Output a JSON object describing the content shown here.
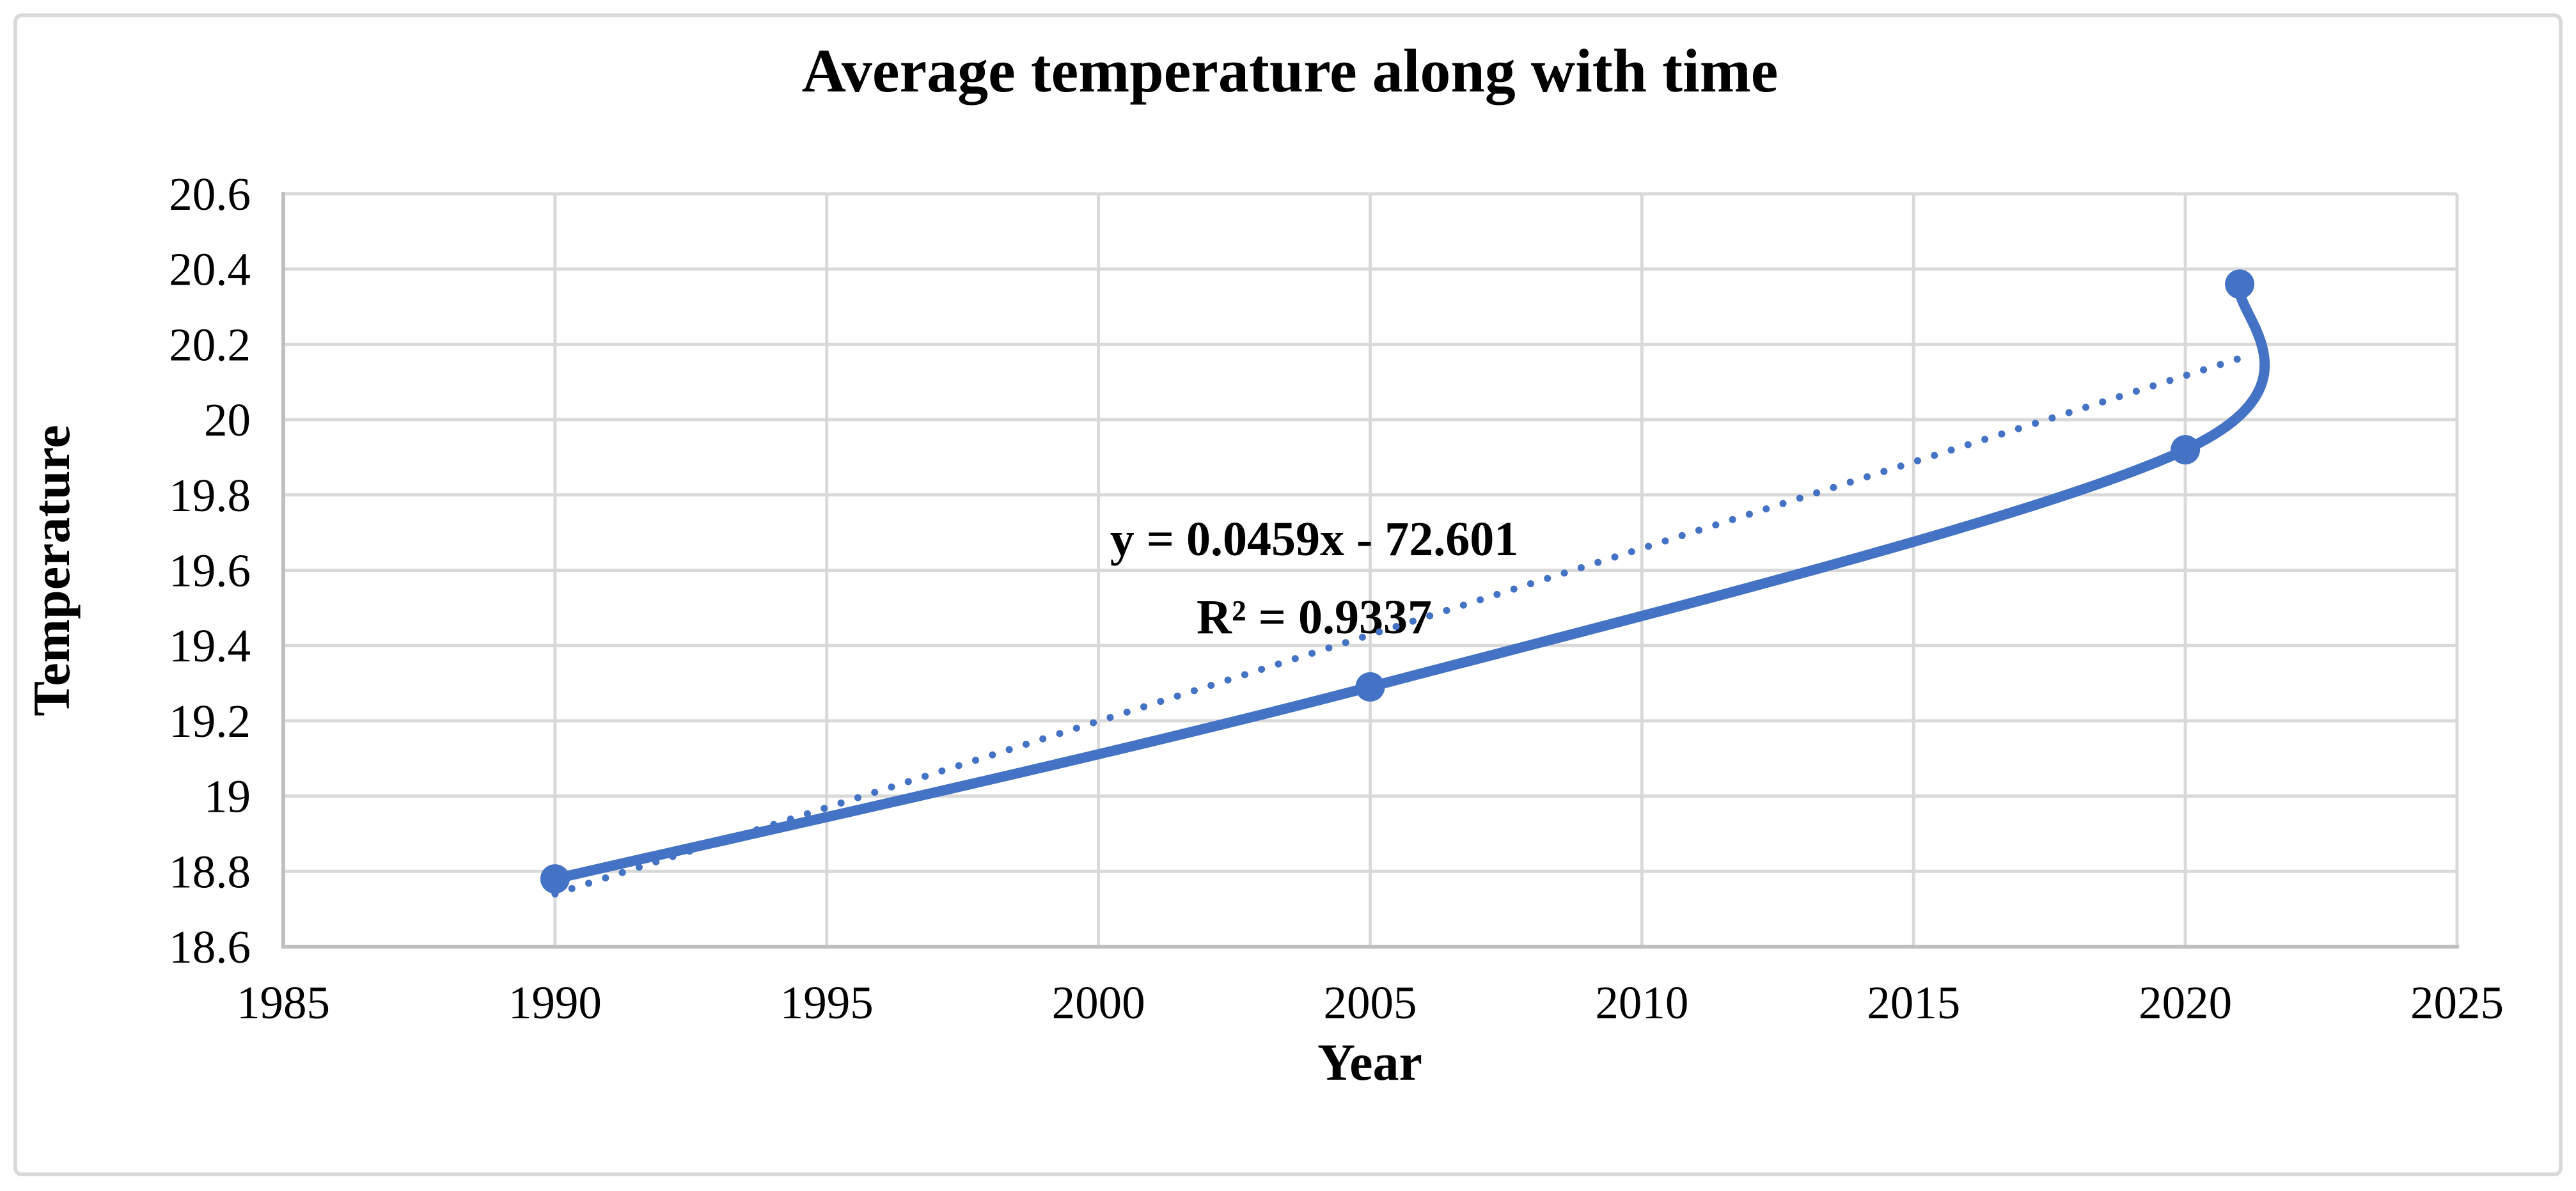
{
  "chart_data": {
    "type": "line",
    "title": "Average temperature along with time",
    "xlabel": "Year",
    "ylabel": "Temperature",
    "xlim": [
      1985,
      2025
    ],
    "ylim": [
      18.6,
      20.6
    ],
    "grid": true,
    "x_ticks": [
      1985,
      1990,
      1995,
      2000,
      2005,
      2010,
      2015,
      2020,
      2025
    ],
    "x_tick_labels": [
      "1985",
      "1990",
      "1995",
      "2000",
      "2005",
      "2010",
      "2015",
      "2020",
      "2025"
    ],
    "y_ticks": [
      18.6,
      18.8,
      19.0,
      19.2,
      19.4,
      19.6,
      19.8,
      20.0,
      20.2,
      20.4,
      20.6
    ],
    "y_tick_labels": [
      "18.6",
      "18.8",
      "19",
      "19.2",
      "19.4",
      "19.6",
      "19.8",
      "20",
      "20.2",
      "20.4",
      "20.6"
    ],
    "series": [
      {
        "name": "Average temperature",
        "x": [
          1990,
          2005,
          2020,
          2021
        ],
        "y": [
          18.78,
          19.29,
          19.92,
          20.36
        ],
        "style": "smooth-line-with-markers",
        "color": "#4472C4"
      }
    ],
    "trendline": {
      "equation_text": "y = 0.0459x - 72.601",
      "r2_text": "R² = 0.9337",
      "slope": 0.0459,
      "intercept": -72.601,
      "x_range": [
        1990,
        2021
      ],
      "style": "dotted",
      "color": "#4472C4"
    },
    "legend": "none"
  },
  "colors": {
    "accent_blue": "#4472C4",
    "gridline": "#D9D9D9",
    "axis_line": "#BFBFBF",
    "chart_border": "#D9D9D9",
    "text": "#000000",
    "background": "#FFFFFF"
  }
}
